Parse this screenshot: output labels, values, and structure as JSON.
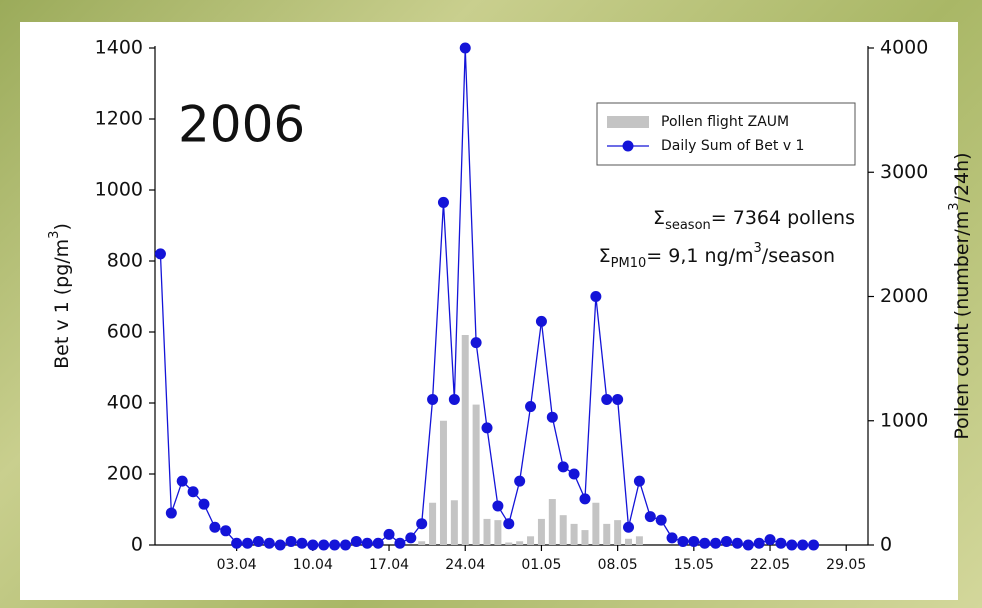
{
  "chart_data": {
    "type": "combo",
    "annotation_main": "2006",
    "y_label": {
      "text": "Bet v 1 (pg/m",
      "sup": "3",
      "end": ")"
    },
    "y2_label": {
      "text": "Pollen count (number/m",
      "sup": "3",
      "end": "/24h)"
    },
    "annotations": [
      {
        "sym": "Σ",
        "sub": "season",
        "text": "= 7364 pollens"
      },
      {
        "sym": "Σ",
        "sub": "PM10",
        "text": "= 9,1  ng/m",
        "sup": "3",
        "end": "/season"
      }
    ],
    "x": [
      -4,
      -3,
      -2,
      -1,
      0,
      1,
      2,
      3,
      4,
      5,
      6,
      7,
      8,
      9,
      10,
      11,
      12,
      13,
      14,
      15,
      16,
      17,
      18,
      19,
      20,
      21,
      22,
      23,
      24,
      25,
      26,
      27,
      28,
      29,
      30,
      31,
      32,
      33,
      34,
      35,
      36,
      37,
      38,
      39,
      40,
      41,
      42,
      43,
      44,
      45,
      46,
      47,
      48,
      49,
      50,
      51,
      52,
      53,
      54,
      55,
      56
    ],
    "series": [
      {
        "name": "Pollen flight ZAUM",
        "type": "bar",
        "axis": "y2",
        "color": "#c4c4c4",
        "values": [
          0,
          0,
          0,
          0,
          0,
          0,
          0,
          0,
          0,
          0,
          0,
          0,
          0,
          0,
          0,
          0,
          0,
          0,
          0,
          0,
          0,
          0,
          0,
          0,
          30,
          340,
          1000,
          360,
          1690,
          1130,
          210,
          200,
          20,
          30,
          70,
          210,
          370,
          240,
          170,
          120,
          340,
          170,
          200,
          50,
          70,
          0,
          0,
          0,
          0,
          0,
          0,
          0,
          0,
          0,
          0,
          0,
          0,
          0,
          0,
          0,
          0
        ]
      },
      {
        "name": "Daily Sum of Bet v 1",
        "type": "line",
        "axis": "y",
        "color": "#1414d8",
        "values": [
          820,
          90,
          180,
          150,
          115,
          50,
          40,
          5,
          5,
          10,
          5,
          0,
          10,
          5,
          0,
          0,
          0,
          0,
          10,
          5,
          5,
          30,
          5,
          20,
          60,
          410,
          965,
          410,
          1400,
          570,
          330,
          110,
          60,
          180,
          390,
          630,
          360,
          220,
          200,
          130,
          700,
          410,
          410,
          50,
          180,
          80,
          70,
          20,
          10,
          10,
          5,
          5,
          10,
          5,
          0,
          5,
          15,
          5,
          0,
          0,
          0
        ]
      }
    ],
    "xlim": [
      -4.5,
      61
    ],
    "xticks": [
      {
        "value": 3,
        "label": "03.04"
      },
      {
        "value": 10,
        "label": "10.04"
      },
      {
        "value": 17,
        "label": "17.04"
      },
      {
        "value": 24,
        "label": "24.04"
      },
      {
        "value": 31,
        "label": "01.05"
      },
      {
        "value": 38,
        "label": "08.05"
      },
      {
        "value": 45,
        "label": "15.05"
      },
      {
        "value": 52,
        "label": "22.05"
      },
      {
        "value": 59,
        "label": "29.05"
      }
    ],
    "ylim": [
      0,
      1400
    ],
    "yticks": [
      0,
      200,
      400,
      600,
      800,
      1000,
      1200,
      1400
    ],
    "y2lim": [
      0,
      4000
    ],
    "y2ticks": [
      0,
      1000,
      2000,
      3000,
      4000
    ],
    "legend": "upper right",
    "grid": false
  }
}
